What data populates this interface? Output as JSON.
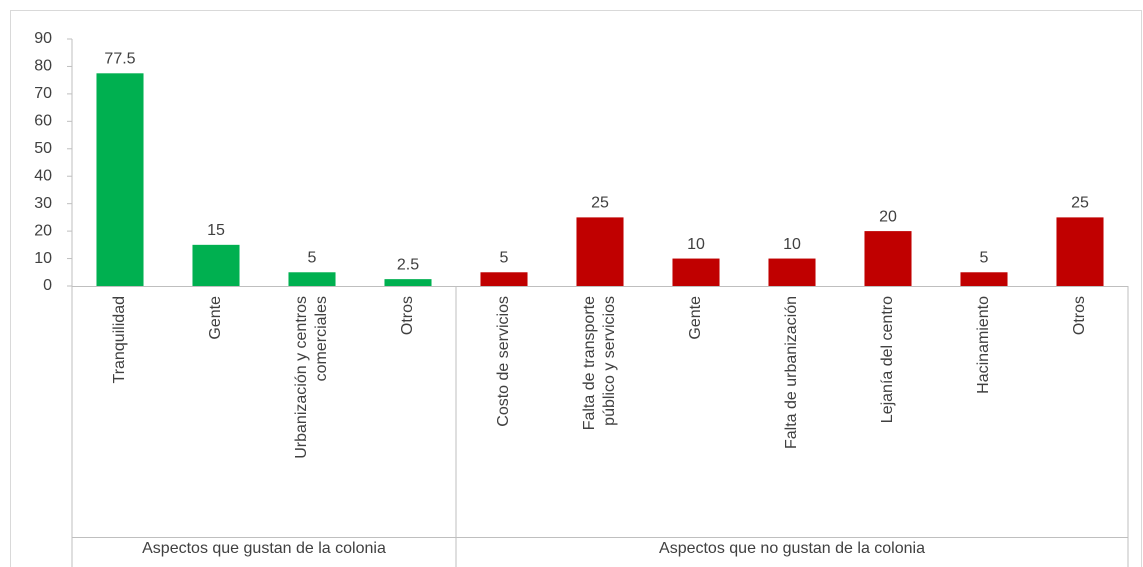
{
  "chart_data": {
    "type": "bar",
    "groups": [
      {
        "name": "Aspectos que gustan de la colonia",
        "color": "#00b050",
        "categories": [
          "Tranquilidad",
          "Gente",
          [
            "Urbanización y centros",
            "comerciales"
          ],
          "Otros"
        ],
        "values": [
          77.5,
          15,
          5,
          2.5
        ]
      },
      {
        "name": "Aspectos que no gustan de la colonia",
        "color": "#c00000",
        "categories": [
          "Costo de servicios",
          [
            "Falta de transporte",
            "público y servicios"
          ],
          "Gente",
          "Falta de urbanización",
          "Lejanía del centro",
          "Hacinamiento",
          "Otros"
        ],
        "values": [
          5,
          25,
          10,
          10,
          20,
          5,
          25
        ]
      }
    ],
    "ylim": [
      0,
      90
    ],
    "yticks": [
      0,
      10,
      20,
      30,
      40,
      50,
      60,
      70,
      80,
      90
    ]
  }
}
